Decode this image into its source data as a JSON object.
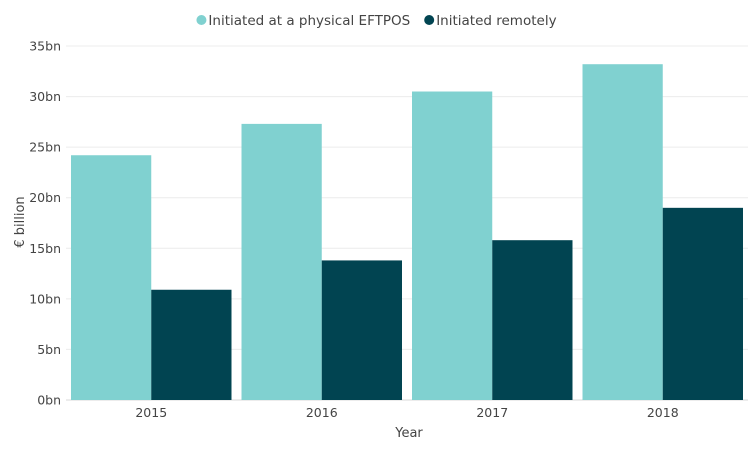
{
  "chart_data": {
    "type": "bar",
    "xlabel": "Year",
    "ylabel": "€ billion",
    "categories": [
      "2015",
      "2016",
      "2017",
      "2018"
    ],
    "series": [
      {
        "name": "Initiated at a physical EFTPOS",
        "color": "#80D1D0",
        "values": [
          24.2,
          27.3,
          30.5,
          33.2
        ]
      },
      {
        "name": "Initiated remotely",
        "color": "#014451",
        "values": [
          10.9,
          13.8,
          15.8,
          19.0
        ]
      }
    ],
    "ylim": [
      0,
      35
    ],
    "y_ticks": [
      {
        "value": 0,
        "label": "0bn"
      },
      {
        "value": 5,
        "label": "5bn"
      },
      {
        "value": 10,
        "label": "10bn"
      },
      {
        "value": 15,
        "label": "15bn"
      },
      {
        "value": 20,
        "label": "20bn"
      },
      {
        "value": 25,
        "label": "25bn"
      },
      {
        "value": 30,
        "label": "30bn"
      },
      {
        "value": 35,
        "label": "35bn"
      }
    ],
    "grid": true,
    "legend_position": "top-center"
  }
}
